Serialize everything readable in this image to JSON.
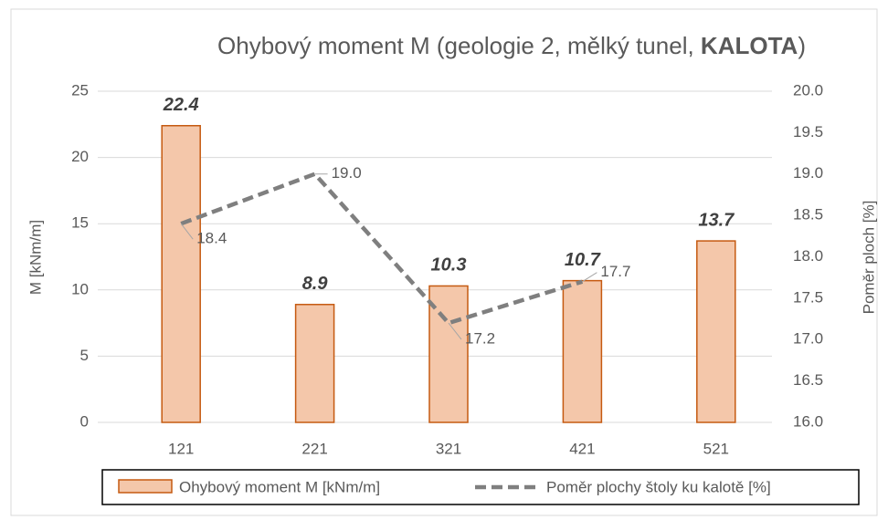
{
  "chart_data": {
    "type": "bar_line",
    "title": [
      {
        "text": "Ohybový moment M (geologie 2, mělký tunel, ",
        "bold": false
      },
      {
        "text": "KALOTA",
        "bold": true
      },
      {
        "text": ")",
        "bold": false
      }
    ],
    "y_label": "M [kNm/m]",
    "y2_label": "Poměr ploch [%]",
    "categories": [
      "121",
      "221",
      "321",
      "421",
      "521"
    ],
    "series": [
      {
        "name": "Ohybový moment M [kNm/m]",
        "type": "bar",
        "color": "#f4c7aa",
        "edge_color": "#c55a11",
        "values": [
          22.4,
          8.9,
          10.3,
          10.7,
          13.7
        ]
      },
      {
        "name": "Poměr plochy štoly ku kalotě [%]",
        "type": "line",
        "axis": "y2",
        "color": "#7f7f7f",
        "dashed": true,
        "values": [
          18.4,
          19.0,
          17.2,
          17.7,
          null
        ],
        "value_labels": [
          "18.4",
          "19.0",
          "17.2",
          "17.7",
          null
        ]
      }
    ],
    "ylim": [
      0,
      25
    ],
    "yticks": [
      0,
      5,
      10,
      15,
      20,
      25
    ],
    "y2lim": [
      16,
      20
    ],
    "y2ticks": [
      {
        "value": 16,
        "label": "16.0"
      },
      16.5,
      {
        "value": 17,
        "label": "17.0"
      },
      17.5,
      {
        "value": 18,
        "label": "18.0"
      },
      18.5,
      {
        "value": 19,
        "label": "19.0"
      },
      19.5,
      {
        "value": 20,
        "label": "20.0"
      }
    ],
    "grid": true,
    "legend": "bottom"
  }
}
